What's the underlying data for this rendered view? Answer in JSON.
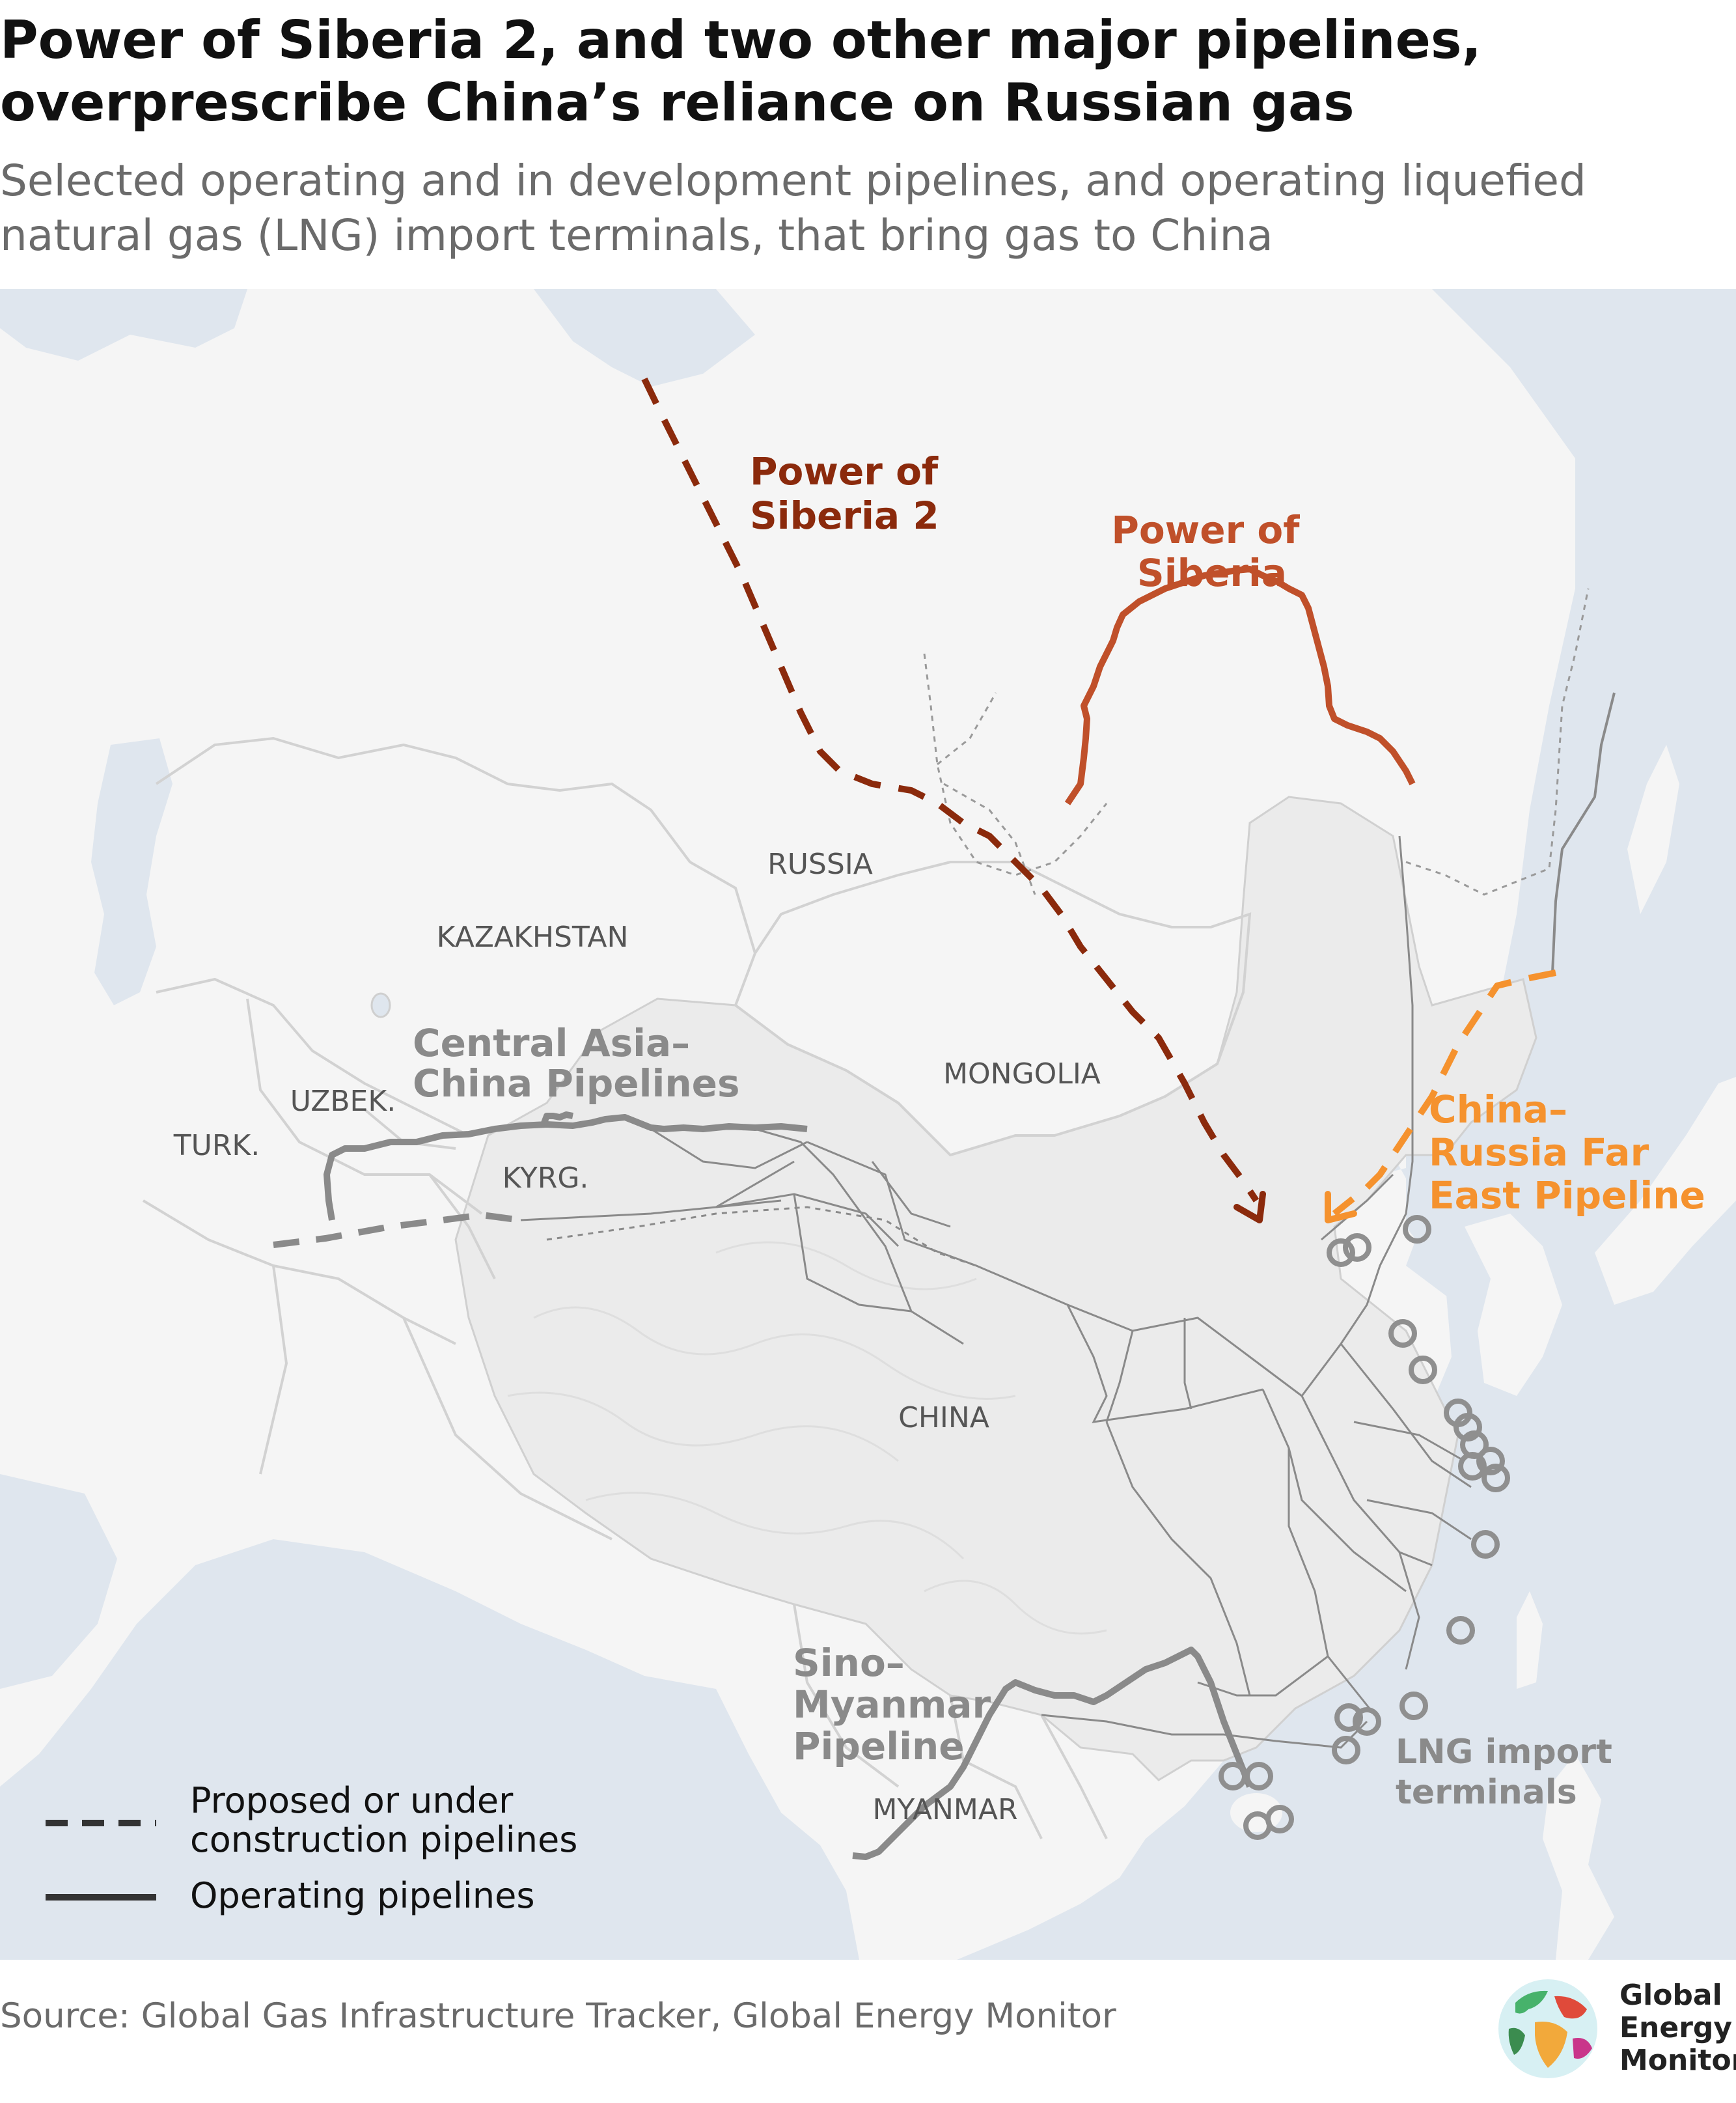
{
  "title": "Power of Siberia 2, and two other major pipelines, overprescribe China’s reliance on Russian gas",
  "subtitle": "Selected operating and in development pipelines, and operating liquefied natural gas (LNG) import terminals, that bring gas to China",
  "colors": {
    "water": "#dfe6ee",
    "land": "#f5f5f5",
    "china": "#ebebeb",
    "border": "#d2d2d2",
    "pipeline_grey": "#8a8a8a",
    "power_of_siberia": "#c0502a",
    "power_of_siberia_2": "#8b2a0c",
    "far_east": "#f5922e",
    "lng": "#8f8f8f"
  },
  "countries": {
    "russia": "RUSSIA",
    "kazakhstan": "KAZAKHSTAN",
    "mongolia": "MONGOLIA",
    "china": "CHINA",
    "uzbek": "UZBEK.",
    "turk": "TURK.",
    "kyrg": "KYRG.",
    "myanmar": "MYANMAR"
  },
  "pipelines": {
    "power_of_siberia_2": [
      "Power of",
      "Siberia 2"
    ],
    "power_of_siberia": [
      "Power of",
      "Siberia"
    ],
    "far_east": [
      "China–",
      "Russia Far",
      "East Pipeline"
    ],
    "central_asia": [
      "Central Asia–",
      "China Pipelines"
    ],
    "sino_myanmar": [
      "Sino–",
      "Myanmar",
      "Pipeline"
    ],
    "lng": [
      "LNG import",
      "terminals"
    ]
  },
  "legend": {
    "proposed": [
      "Proposed or under",
      "construction pipelines"
    ],
    "operating": "Operating pipelines"
  },
  "source": "Source: Global Gas Infrastructure Tracker, Global Energy Monitor",
  "logo": {
    "line1": "Global",
    "line2": "Energy",
    "line3": "Monitor"
  }
}
